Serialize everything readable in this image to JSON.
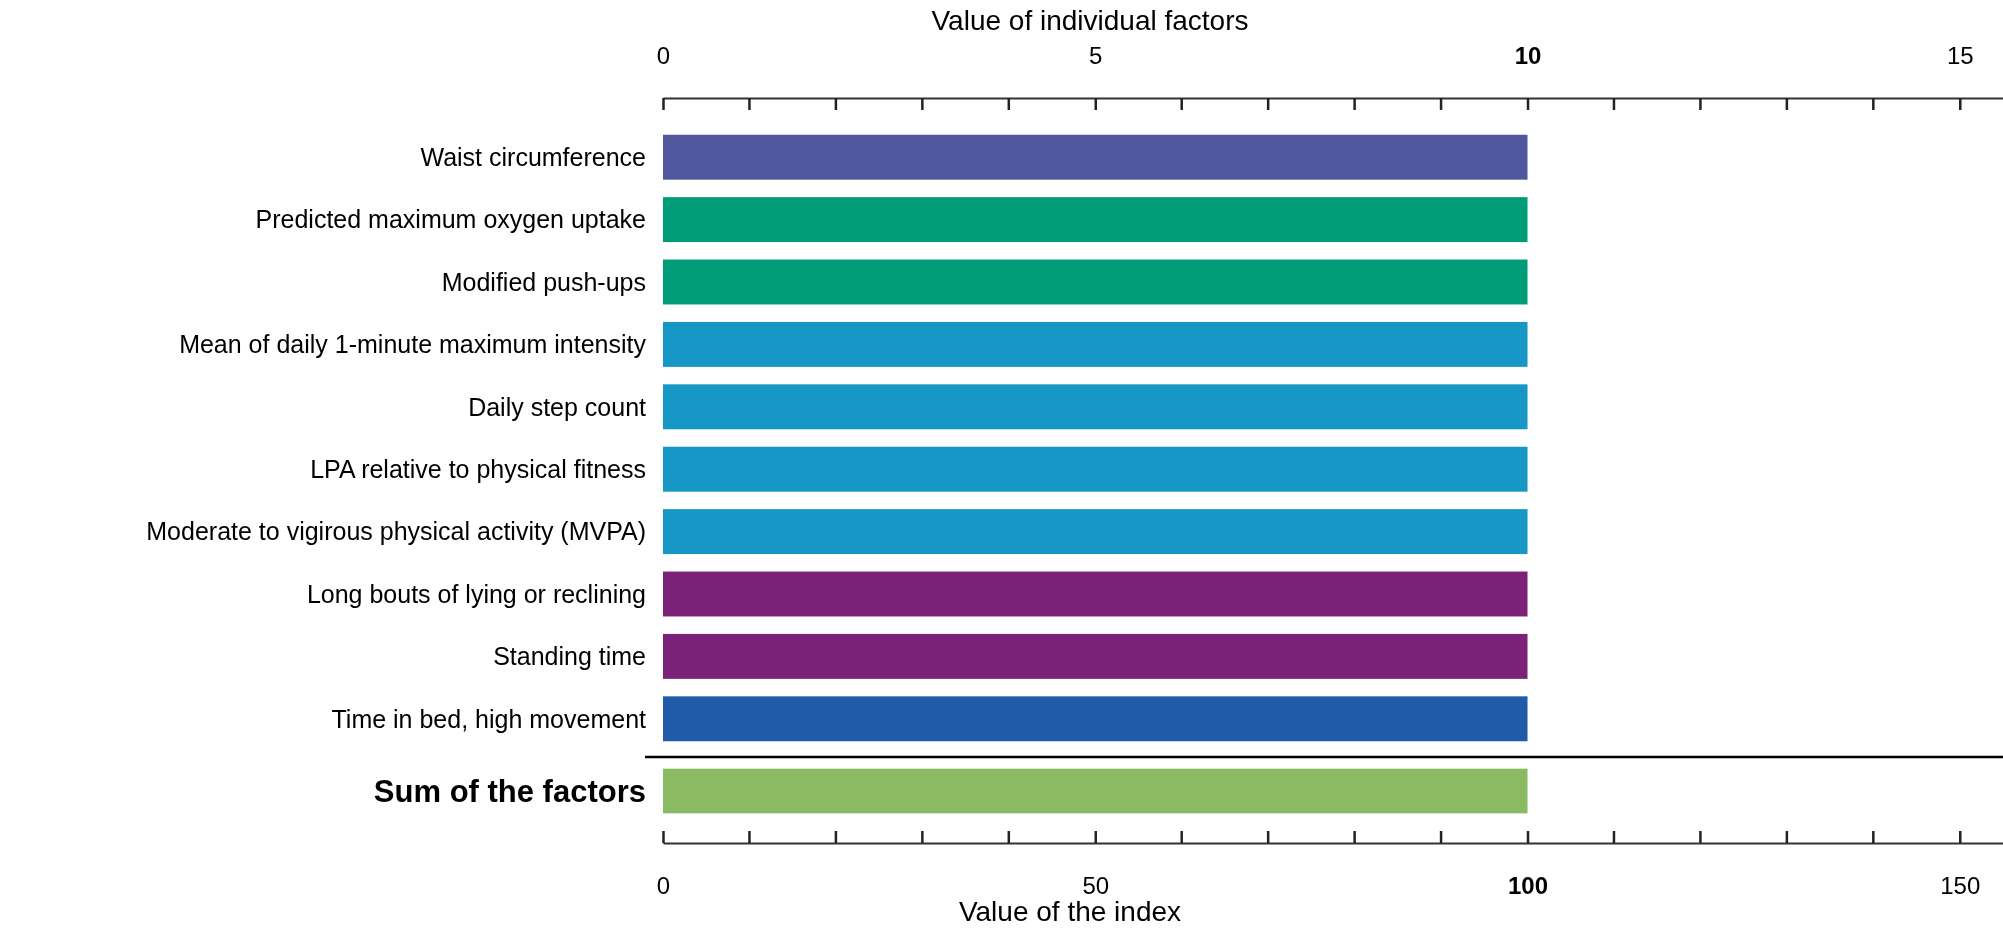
{
  "chart_data": [
    {
      "type": "bar",
      "orientation": "horizontal",
      "xlabel": "Value of individual factors",
      "categories": [
        "Waist circumference",
        "Predicted maximum oxygen uptake",
        "Modified push-ups",
        "Mean of daily 1-minute maximum intensity",
        "Daily step count",
        "LPA relative to physical  fitness",
        "Moderate to vigirous physical activity (MVPA)",
        "Long bouts of lying or reclining",
        "Standing time",
        "Time in bed, high movement"
      ],
      "values": [
        10,
        10,
        10,
        10,
        10,
        10,
        10,
        10,
        10,
        10
      ],
      "colors": [
        "#51579f",
        "#009b77",
        "#009b77",
        "#1797c6",
        "#1797c6",
        "#1797c6",
        "#1797c6",
        "#7b2177",
        "#7b2177",
        "#1f5ba6"
      ],
      "xlim": [
        0,
        15.5
      ],
      "xticks": [
        0,
        5,
        10,
        15
      ]
    },
    {
      "type": "bar",
      "orientation": "horizontal",
      "xlabel": "Value of the index",
      "categories": [
        "Sum of the factors"
      ],
      "values": [
        100
      ],
      "colors": [
        "#8aba62"
      ],
      "xlim": [
        0,
        155
      ],
      "xticks": [
        0,
        50,
        100,
        150
      ]
    }
  ]
}
